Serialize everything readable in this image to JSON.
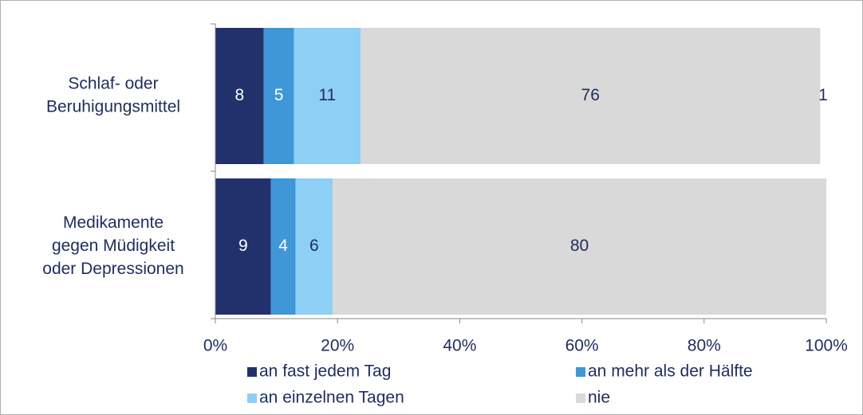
{
  "chart_data": {
    "type": "stacked_bar_100",
    "categories": [
      [
        "Schlaf- oder",
        "Beruhigungsmittel"
      ],
      [
        "Medikamente",
        "gegen Müdigkeit",
        "oder Depressionen"
      ]
    ],
    "series": [
      {
        "name": "an fast jedem Tag",
        "color": "#22316c",
        "label_color": "#ffffff",
        "values": [
          8,
          9
        ]
      },
      {
        "name": "an mehr als der Hälfte",
        "color": "#3f97d8",
        "label_color": "#ffffff",
        "values": [
          5,
          4
        ]
      },
      {
        "name": "an einzelnen Tagen",
        "color": "#8ecff5",
        "label_color": "#1f2d5c",
        "values": [
          11,
          6
        ]
      },
      {
        "name": "nie",
        "color": "#d9d9d9",
        "label_color": "#1f2d5c",
        "values": [
          76,
          80
        ]
      },
      {
        "color": "#ffffff",
        "label_color": "#1f2d5c",
        "values": [
          1,
          null
        ]
      }
    ],
    "xlim": [
      0,
      100
    ],
    "xticks": [
      {
        "value": 0,
        "label": "0%"
      },
      {
        "value": 20,
        "label": "20%"
      },
      {
        "value": 40,
        "label": "40%"
      },
      {
        "value": 60,
        "label": "60%"
      },
      {
        "value": 80,
        "label": "80%"
      },
      {
        "value": 100,
        "label": "100%"
      }
    ]
  }
}
